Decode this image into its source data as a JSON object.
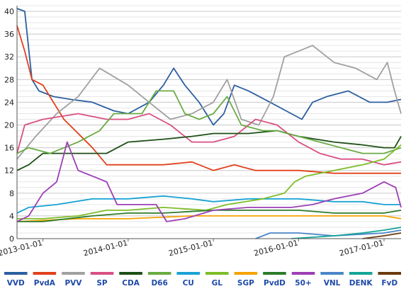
{
  "chart_data": {
    "type": "line",
    "title": "",
    "xlabel": "",
    "ylabel": "",
    "x_range": [
      "2012-09-12",
      "2017-03-15"
    ],
    "ylim": [
      0,
      41
    ],
    "y_ticks": [
      0,
      4,
      8,
      12,
      16,
      20,
      24,
      28,
      32,
      36,
      40
    ],
    "x_ticks": [
      "2013-01-01",
      "2014-01-01",
      "2015-01-01",
      "2016-01-01",
      "2017-01-01"
    ],
    "grid": true,
    "legend_placement": "bottom",
    "series": [
      {
        "name": "VVD",
        "color": "#2c5fa0",
        "points": [
          [
            "2012-09-12",
            40.5
          ],
          [
            "2012-10-15",
            40
          ],
          [
            "2012-11-15",
            28
          ],
          [
            "2012-12-15",
            26
          ],
          [
            "2013-02-15",
            25
          ],
          [
            "2013-05-01",
            24.5
          ],
          [
            "2013-08-01",
            24
          ],
          [
            "2013-11-01",
            22.5
          ],
          [
            "2014-01-01",
            22
          ],
          [
            "2014-04-01",
            24
          ],
          [
            "2014-06-01",
            27
          ],
          [
            "2014-07-15",
            30
          ],
          [
            "2014-09-01",
            27
          ],
          [
            "2014-11-01",
            24
          ],
          [
            "2015-01-01",
            20
          ],
          [
            "2015-02-15",
            22
          ],
          [
            "2015-04-01",
            27
          ],
          [
            "2015-06-01",
            26
          ],
          [
            "2015-09-01",
            24
          ],
          [
            "2015-12-01",
            22
          ],
          [
            "2016-01-15",
            21
          ],
          [
            "2016-03-01",
            24
          ],
          [
            "2016-05-01",
            25
          ],
          [
            "2016-08-01",
            26
          ],
          [
            "2016-11-01",
            24
          ],
          [
            "2017-01-15",
            24
          ],
          [
            "2017-03-15",
            24.5
          ]
        ]
      },
      {
        "name": "PvdA",
        "color": "#e2401c",
        "points": [
          [
            "2012-09-12",
            37.5
          ],
          [
            "2012-10-15",
            33
          ],
          [
            "2012-11-15",
            28
          ],
          [
            "2013-01-01",
            27
          ],
          [
            "2013-04-01",
            21
          ],
          [
            "2013-08-01",
            16
          ],
          [
            "2013-10-01",
            13
          ],
          [
            "2014-01-01",
            13
          ],
          [
            "2014-06-01",
            13
          ],
          [
            "2014-10-01",
            13.5
          ],
          [
            "2015-01-01",
            12
          ],
          [
            "2015-04-01",
            13
          ],
          [
            "2015-07-01",
            12
          ],
          [
            "2015-10-01",
            12
          ],
          [
            "2016-01-01",
            12
          ],
          [
            "2016-06-01",
            11.5
          ],
          [
            "2016-10-01",
            11.5
          ],
          [
            "2017-01-01",
            11.5
          ],
          [
            "2017-03-15",
            11.5
          ]
        ]
      },
      {
        "name": "PVV",
        "color": "#a0a0a0",
        "points": [
          [
            "2012-09-12",
            14
          ],
          [
            "2012-12-01",
            18
          ],
          [
            "2013-03-01",
            22
          ],
          [
            "2013-06-01",
            25
          ],
          [
            "2013-09-01",
            30
          ],
          [
            "2014-01-01",
            27
          ],
          [
            "2014-04-01",
            24
          ],
          [
            "2014-07-01",
            21
          ],
          [
            "2014-10-01",
            22
          ],
          [
            "2015-01-01",
            24
          ],
          [
            "2015-03-01",
            28
          ],
          [
            "2015-05-01",
            21
          ],
          [
            "2015-07-15",
            20
          ],
          [
            "2015-09-15",
            25
          ],
          [
            "2015-11-01",
            32
          ],
          [
            "2016-01-01",
            33
          ],
          [
            "2016-03-01",
            34
          ],
          [
            "2016-06-01",
            31
          ],
          [
            "2016-09-01",
            30
          ],
          [
            "2016-12-01",
            28
          ],
          [
            "2017-01-15",
            31
          ],
          [
            "2017-02-15",
            26
          ],
          [
            "2017-03-15",
            22
          ]
        ]
      },
      {
        "name": "SP",
        "color": "#d94f83",
        "points": [
          [
            "2012-09-12",
            15
          ],
          [
            "2012-10-15",
            20
          ],
          [
            "2013-01-01",
            21
          ],
          [
            "2013-06-01",
            22
          ],
          [
            "2013-10-01",
            21
          ],
          [
            "2014-01-01",
            21
          ],
          [
            "2014-04-01",
            22
          ],
          [
            "2014-07-01",
            20
          ],
          [
            "2014-10-01",
            17
          ],
          [
            "2015-01-01",
            17
          ],
          [
            "2015-04-01",
            18
          ],
          [
            "2015-07-01",
            21
          ],
          [
            "2015-10-01",
            20
          ],
          [
            "2016-01-01",
            17
          ],
          [
            "2016-04-01",
            15
          ],
          [
            "2016-07-01",
            14
          ],
          [
            "2016-10-01",
            14
          ],
          [
            "2017-01-01",
            13
          ],
          [
            "2017-03-15",
            13.5
          ]
        ]
      },
      {
        "name": "CDA",
        "color": "#1d4f16",
        "points": [
          [
            "2012-09-12",
            12
          ],
          [
            "2012-11-01",
            13
          ],
          [
            "2013-01-01",
            15
          ],
          [
            "2013-06-01",
            15
          ],
          [
            "2013-10-01",
            15
          ],
          [
            "2014-01-01",
            17
          ],
          [
            "2014-06-01",
            17.5
          ],
          [
            "2014-10-01",
            18
          ],
          [
            "2015-01-01",
            18.5
          ],
          [
            "2015-06-01",
            18.5
          ],
          [
            "2015-10-01",
            19
          ],
          [
            "2016-01-01",
            18
          ],
          [
            "2016-06-01",
            17
          ],
          [
            "2016-10-01",
            16.5
          ],
          [
            "2017-01-01",
            16
          ],
          [
            "2017-02-15",
            16
          ],
          [
            "2017-03-15",
            18
          ]
        ]
      },
      {
        "name": "D66",
        "color": "#6aab44",
        "points": [
          [
            "2012-09-12",
            15
          ],
          [
            "2012-11-01",
            16
          ],
          [
            "2013-02-01",
            15
          ],
          [
            "2013-06-01",
            17
          ],
          [
            "2013-09-01",
            19
          ],
          [
            "2013-11-01",
            22
          ],
          [
            "2014-01-01",
            22
          ],
          [
            "2014-03-01",
            22
          ],
          [
            "2014-05-01",
            26
          ],
          [
            "2014-07-15",
            26
          ],
          [
            "2014-09-01",
            22
          ],
          [
            "2014-11-01",
            21
          ],
          [
            "2015-01-01",
            22
          ],
          [
            "2015-03-01",
            25
          ],
          [
            "2015-05-01",
            20
          ],
          [
            "2015-08-01",
            19
          ],
          [
            "2015-10-01",
            19
          ],
          [
            "2016-01-01",
            18
          ],
          [
            "2016-04-01",
            17
          ],
          [
            "2016-07-01",
            16
          ],
          [
            "2016-10-01",
            15
          ],
          [
            "2017-01-01",
            15
          ],
          [
            "2017-03-15",
            16
          ]
        ]
      },
      {
        "name": "CU",
        "color": "#19a3d3",
        "points": [
          [
            "2012-09-12",
            4.5
          ],
          [
            "2012-11-01",
            5.5
          ],
          [
            "2013-03-01",
            6
          ],
          [
            "2013-08-01",
            7
          ],
          [
            "2014-01-01",
            7
          ],
          [
            "2014-06-01",
            7.5
          ],
          [
            "2014-10-01",
            7
          ],
          [
            "2015-01-01",
            6.5
          ],
          [
            "2015-06-01",
            7
          ],
          [
            "2015-10-01",
            7
          ],
          [
            "2016-01-01",
            7
          ],
          [
            "2016-06-01",
            6.5
          ],
          [
            "2016-10-01",
            6.5
          ],
          [
            "2017-01-01",
            6
          ],
          [
            "2017-03-15",
            6
          ]
        ]
      },
      {
        "name": "GL",
        "color": "#7dbd29",
        "points": [
          [
            "2012-09-12",
            3.5
          ],
          [
            "2013-01-01",
            3.5
          ],
          [
            "2013-06-01",
            4
          ],
          [
            "2013-10-01",
            5
          ],
          [
            "2014-01-01",
            5
          ],
          [
            "2014-06-01",
            5.5
          ],
          [
            "2014-12-01",
            5
          ],
          [
            "2015-03-01",
            6
          ],
          [
            "2015-08-01",
            7
          ],
          [
            "2015-11-01",
            8
          ],
          [
            "2015-12-15",
            10
          ],
          [
            "2016-02-01",
            11
          ],
          [
            "2016-06-01",
            12
          ],
          [
            "2016-10-01",
            13
          ],
          [
            "2017-01-01",
            14
          ],
          [
            "2017-03-15",
            16.5
          ]
        ]
      },
      {
        "name": "SGP",
        "color": "#f5a300",
        "points": [
          [
            "2012-09-12",
            3
          ],
          [
            "2013-06-01",
            3.5
          ],
          [
            "2014-01-01",
            3.5
          ],
          [
            "2014-10-01",
            4
          ],
          [
            "2015-06-01",
            4
          ],
          [
            "2016-01-01",
            4
          ],
          [
            "2016-06-01",
            4
          ],
          [
            "2017-01-01",
            4
          ],
          [
            "2017-03-15",
            3.5
          ]
        ]
      },
      {
        "name": "PvdD",
        "color": "#2d7c2a",
        "points": [
          [
            "2012-09-12",
            3
          ],
          [
            "2013-01-01",
            3
          ],
          [
            "2013-08-01",
            4
          ],
          [
            "2014-01-01",
            4.5
          ],
          [
            "2014-06-01",
            4.5
          ],
          [
            "2015-01-01",
            5
          ],
          [
            "2015-06-01",
            5
          ],
          [
            "2016-01-01",
            5
          ],
          [
            "2016-06-01",
            4.5
          ],
          [
            "2017-01-01",
            4.5
          ],
          [
            "2017-03-15",
            5
          ]
        ]
      },
      {
        "name": "50+",
        "color": "#9c3fb5",
        "points": [
          [
            "2012-09-12",
            3
          ],
          [
            "2012-11-01",
            4
          ],
          [
            "2013-01-01",
            8
          ],
          [
            "2013-03-01",
            10
          ],
          [
            "2013-04-15",
            17
          ],
          [
            "2013-06-01",
            12
          ],
          [
            "2013-08-01",
            11
          ],
          [
            "2013-10-01",
            10
          ],
          [
            "2013-11-15",
            6
          ],
          [
            "2014-01-01",
            6
          ],
          [
            "2014-03-01",
            6
          ],
          [
            "2014-05-01",
            6
          ],
          [
            "2014-06-15",
            3
          ],
          [
            "2014-09-01",
            3.5
          ],
          [
            "2015-01-01",
            5
          ],
          [
            "2015-06-01",
            5.5
          ],
          [
            "2015-12-01",
            5.5
          ],
          [
            "2016-03-01",
            6
          ],
          [
            "2016-06-01",
            7
          ],
          [
            "2016-10-01",
            8
          ],
          [
            "2017-01-01",
            10
          ],
          [
            "2017-02-20",
            9
          ],
          [
            "2017-03-15",
            5.5
          ]
        ]
      },
      {
        "name": "VNL",
        "color": "#4a86c8",
        "points": [
          [
            "2015-07-01",
            0
          ],
          [
            "2015-09-01",
            1
          ],
          [
            "2016-01-01",
            1
          ],
          [
            "2016-06-01",
            0.5
          ],
          [
            "2017-01-01",
            1
          ],
          [
            "2017-03-15",
            1.5
          ]
        ]
      },
      {
        "name": "DENK",
        "color": "#14a497",
        "points": [
          [
            "2015-12-01",
            0
          ],
          [
            "2016-06-01",
            0.5
          ],
          [
            "2016-10-01",
            1
          ],
          [
            "2017-01-01",
            1.5
          ],
          [
            "2017-03-15",
            2
          ]
        ]
      },
      {
        "name": "FvD",
        "color": "#6b3a0e",
        "points": [
          [
            "2016-10-01",
            0
          ],
          [
            "2017-01-01",
            0.5
          ],
          [
            "2017-03-15",
            1
          ]
        ]
      }
    ]
  }
}
